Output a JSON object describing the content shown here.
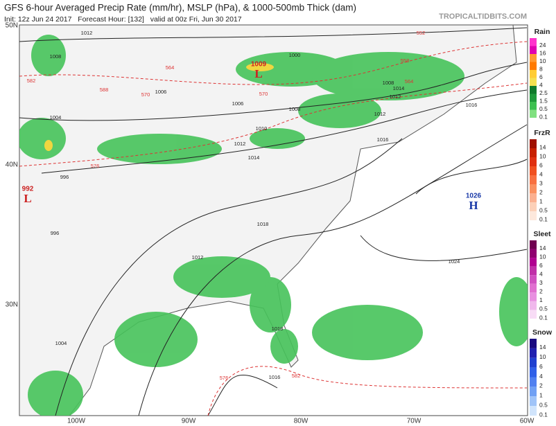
{
  "header": {
    "title": "GFS 6-hour Averaged Precip Rate (mm/hr), MSLP (hPa), & 1000-500mb Thick (dam)",
    "subtitle": "Init: 12z Jun 24 2017   Forecast Hour: [132]   valid at 00z Fri, Jun 30 2017",
    "source": "TROPICALTIDBITS.COM"
  },
  "map": {
    "latitudes": [
      "50N",
      "40N",
      "30N"
    ],
    "longitudes": [
      "100W",
      "90W",
      "80W",
      "70W",
      "60W"
    ],
    "centers": [
      {
        "value": "992",
        "symbol": "L"
      },
      {
        "value": "1009",
        "symbol": "L"
      },
      {
        "value": "1026",
        "symbol": "H"
      }
    ],
    "isobar_labels": [
      "1012",
      "1008",
      "1004",
      "1000",
      "1006",
      "1006",
      "1008",
      "1010",
      "1012",
      "1014",
      "1016",
      "1018",
      "1024",
      "996",
      "996",
      "1004",
      "1012",
      "1012",
      "1016",
      "1016",
      "1018",
      "1008",
      "1014",
      "1012"
    ],
    "thickness_labels": [
      "564",
      "570",
      "576",
      "582",
      "552",
      "558",
      "564",
      "570",
      "576",
      "582",
      "588"
    ]
  },
  "legends": [
    {
      "title": "Rain",
      "labels": [
        "24",
        "16",
        "10",
        "8",
        "6",
        "4",
        "2.5",
        "1.5",
        "0.5",
        "0.1"
      ],
      "colors": [
        "#ff33cc",
        "#e000b0",
        "#ff9933",
        "#ff7a00",
        "#ffcc33",
        "#f5e050",
        "#0f7a2a",
        "#1f9a3a",
        "#3cc050",
        "#80e080"
      ]
    },
    {
      "title": "FrzR",
      "labels": [
        "14",
        "10",
        "6",
        "4",
        "3",
        "2",
        "1",
        "0.5",
        "0.1"
      ],
      "colors": [
        "#a01000",
        "#c82000",
        "#e03010",
        "#f05020",
        "#f87040",
        "#fa9060",
        "#fbb090",
        "#fcd0b8",
        "#fde8dc"
      ]
    },
    {
      "title": "Sleet",
      "labels": [
        "14",
        "10",
        "6",
        "4",
        "3",
        "2",
        "1",
        "0.5",
        "0.1"
      ],
      "colors": [
        "#700050",
        "#900070",
        "#b00090",
        "#c030a8",
        "#d050c0",
        "#e070d0",
        "#e890e0",
        "#f0b8ec",
        "#f8dcf6"
      ]
    },
    {
      "title": "Snow",
      "labels": [
        "14",
        "10",
        "6",
        "4",
        "2",
        "1",
        "0.5",
        "0.1"
      ],
      "colors": [
        "#1a0a80",
        "#2020b0",
        "#2040d0",
        "#3060e8",
        "#5080f0",
        "#70a0f4",
        "#a0c4f8",
        "#d0e4fc"
      ]
    }
  ]
}
